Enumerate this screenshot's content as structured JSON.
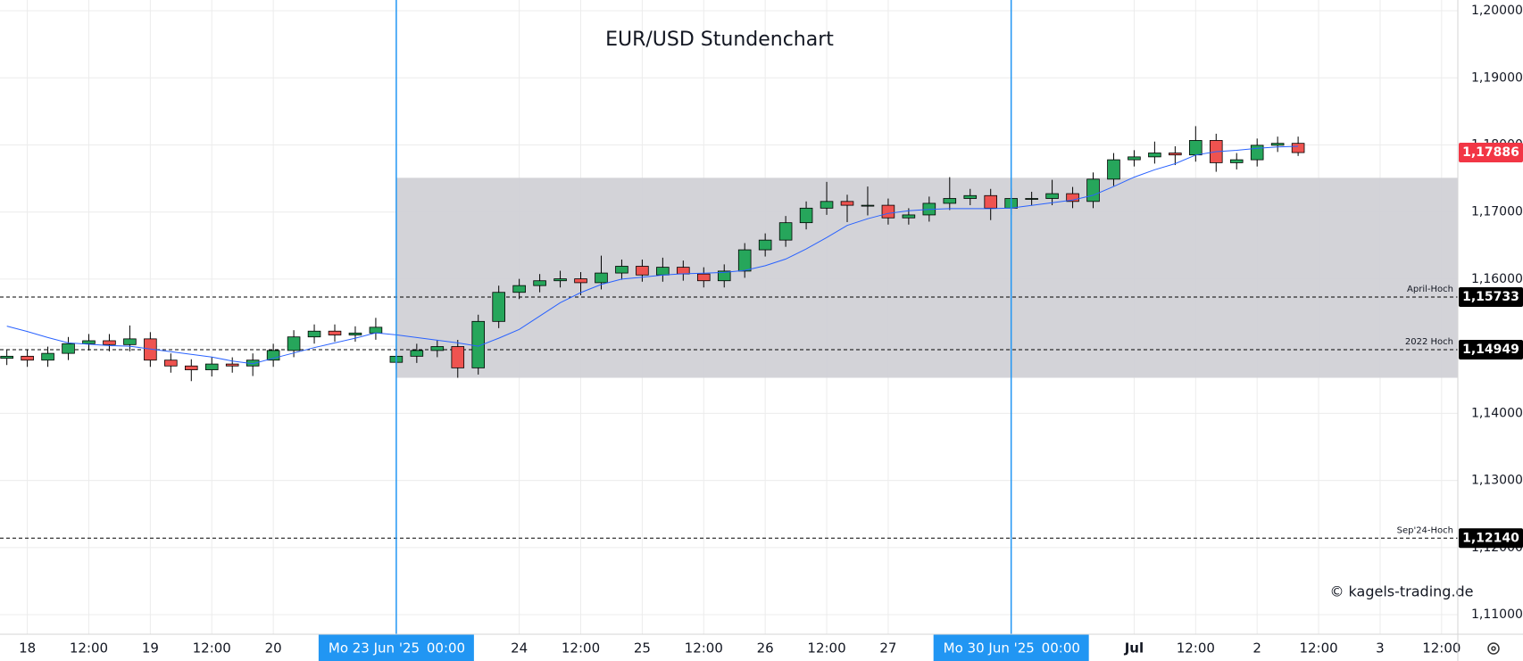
{
  "chart_data": {
    "type": "candlestick",
    "title": "EUR/USD Stundenchart",
    "watermark": "© kagels-trading.de",
    "grid": true,
    "up_color": "#26a65b",
    "down_color": "#ef5350",
    "x": [
      "2025-06-17 20:00",
      "2025-06-18 00:00",
      "2025-06-18 04:00",
      "2025-06-18 08:00",
      "2025-06-18 12:00",
      "2025-06-18 16:00",
      "2025-06-18 20:00",
      "2025-06-19 00:00",
      "2025-06-19 04:00",
      "2025-06-19 08:00",
      "2025-06-19 12:00",
      "2025-06-19 16:00",
      "2025-06-19 20:00",
      "2025-06-20 00:00",
      "2025-06-20 04:00",
      "2025-06-20 08:00",
      "2025-06-20 12:00",
      "2025-06-20 16:00",
      "2025-06-20 20:00",
      "2025-06-23 00:00",
      "2025-06-23 04:00",
      "2025-06-23 08:00",
      "2025-06-23 12:00",
      "2025-06-23 16:00",
      "2025-06-23 20:00",
      "2025-06-24 00:00",
      "2025-06-24 04:00",
      "2025-06-24 08:00",
      "2025-06-24 12:00",
      "2025-06-24 16:00",
      "2025-06-24 20:00",
      "2025-06-25 00:00",
      "2025-06-25 04:00",
      "2025-06-25 08:00",
      "2025-06-25 12:00",
      "2025-06-25 16:00",
      "2025-06-25 20:00",
      "2025-06-26 00:00",
      "2025-06-26 04:00",
      "2025-06-26 08:00",
      "2025-06-26 12:00",
      "2025-06-26 16:00",
      "2025-06-26 20:00",
      "2025-06-27 00:00",
      "2025-06-27 04:00",
      "2025-06-27 08:00",
      "2025-06-27 12:00",
      "2025-06-27 16:00",
      "2025-06-27 20:00",
      "2025-06-30 00:00",
      "2025-06-30 04:00",
      "2025-06-30 08:00",
      "2025-06-30 12:00",
      "2025-06-30 16:00",
      "2025-06-30 20:00",
      "2025-07-01 00:00",
      "2025-07-01 04:00",
      "2025-07-01 08:00",
      "2025-07-01 12:00",
      "2025-07-01 16:00",
      "2025-07-01 20:00",
      "2025-07-02 00:00",
      "2025-07-02 04:00",
      "2025-07-02 08:00"
    ],
    "open": [
      1.1482,
      1.14851,
      1.14793,
      1.14894,
      1.15038,
      1.15082,
      1.15024,
      1.1511,
      1.14793,
      1.14706,
      1.14649,
      1.14735,
      1.14706,
      1.14793,
      1.14937,
      1.15139,
      1.15225,
      1.15168,
      1.15197,
      1.1476,
      1.14851,
      1.14937,
      1.14995,
      1.14678,
      1.1537,
      1.15803,
      1.15904,
      1.15976,
      1.16005,
      1.15947,
      1.16091,
      1.16192,
      1.16062,
      1.16177,
      1.16077,
      1.15976,
      1.1612,
      1.16437,
      1.16582,
      1.16841,
      1.17058,
      1.17158,
      1.17101,
      1.17101,
      1.16913,
      1.16957,
      1.1713,
      1.17202,
      1.17245,
      1.17058,
      1.17202,
      1.17202,
      1.17274,
      1.17158,
      1.1749,
      1.17779,
      1.17822,
      1.1788,
      1.17851,
      1.18067,
      1.17735,
      1.17779,
      1.17995,
      1.18024
    ],
    "high": [
      1.14951,
      1.14951,
      1.14994,
      1.15138,
      1.15182,
      1.15182,
      1.1531,
      1.1521,
      1.14893,
      1.14806,
      1.14835,
      1.14835,
      1.14893,
      1.15037,
      1.15239,
      1.15325,
      1.15325,
      1.15297,
      1.15423,
      1.14951,
      1.15037,
      1.15095,
      1.15095,
      1.1547,
      1.15903,
      1.16004,
      1.16076,
      1.16125,
      1.16105,
      1.1635,
      1.16292,
      1.16292,
      1.1632,
      1.16277,
      1.16177,
      1.1622,
      1.16537,
      1.16682,
      1.16941,
      1.17158,
      1.1745,
      1.17258,
      1.1738,
      1.17201,
      1.17057,
      1.1723,
      1.1752,
      1.17345,
      1.17345,
      1.1735,
      1.17302,
      1.1748,
      1.17374,
      1.1759,
      1.17879,
      1.17922,
      1.1805,
      1.1798,
      1.1828,
      1.18167,
      1.17879,
      1.18095,
      1.18124,
      1.18124
    ],
    "low": [
      1.1472,
      1.14693,
      1.14693,
      1.14794,
      1.14938,
      1.14924,
      1.14924,
      1.14693,
      1.14606,
      1.1448,
      1.14549,
      1.14606,
      1.14556,
      1.14693,
      1.14837,
      1.15039,
      1.15068,
      1.15068,
      1.15097,
      1.1466,
      1.14751,
      1.14837,
      1.1453,
      1.14578,
      1.1527,
      1.15703,
      1.15804,
      1.15876,
      1.1576,
      1.15847,
      1.15991,
      1.15962,
      1.15962,
      1.15977,
      1.15876,
      1.15876,
      1.1602,
      1.16337,
      1.16482,
      1.16741,
      1.16958,
      1.1685,
      1.1695,
      1.16813,
      1.16813,
      1.16857,
      1.1703,
      1.17102,
      1.1688,
      1.16958,
      1.17102,
      1.17102,
      1.17058,
      1.17058,
      1.1739,
      1.17679,
      1.17722,
      1.177,
      1.17751,
      1.176,
      1.17635,
      1.17679,
      1.17895,
      1.17836
    ],
    "close": [
      1.14851,
      1.14793,
      1.14894,
      1.15038,
      1.15082,
      1.15024,
      1.1511,
      1.14793,
      1.14706,
      1.14649,
      1.14735,
      1.14706,
      1.14793,
      1.14937,
      1.15139,
      1.15225,
      1.15168,
      1.15197,
      1.15283,
      1.14851,
      1.14937,
      1.14995,
      1.14678,
      1.1537,
      1.15803,
      1.15904,
      1.15976,
      1.16005,
      1.15947,
      1.16091,
      1.16192,
      1.16062,
      1.16177,
      1.16077,
      1.15976,
      1.1612,
      1.16437,
      1.16582,
      1.16841,
      1.17058,
      1.17158,
      1.17101,
      1.17101,
      1.16913,
      1.16957,
      1.1713,
      1.17202,
      1.17245,
      1.17058,
      1.17202,
      1.17202,
      1.17274,
      1.17158,
      1.1749,
      1.17779,
      1.17822,
      1.1788,
      1.17851,
      1.18067,
      1.17735,
      1.17779,
      1.17995,
      1.18024,
      1.17886
    ],
    "ma": {
      "color": "#2962ff",
      "values": [
        1.153,
        1.1522,
        1.1513,
        1.1505,
        1.1503,
        1.1501,
        1.15,
        1.1496,
        1.1492,
        1.1488,
        1.1484,
        1.1478,
        1.1474,
        1.1482,
        1.149,
        1.1498,
        1.1505,
        1.1512,
        1.152,
        1.1517,
        1.1513,
        1.1509,
        1.1505,
        1.15,
        1.1512,
        1.1525,
        1.1545,
        1.1565,
        1.158,
        1.1592,
        1.16,
        1.1603,
        1.1606,
        1.1608,
        1.1609,
        1.161,
        1.1613,
        1.162,
        1.163,
        1.1645,
        1.1662,
        1.168,
        1.169,
        1.1698,
        1.1702,
        1.1704,
        1.1705,
        1.1705,
        1.1705,
        1.1706,
        1.171,
        1.1714,
        1.1718,
        1.1725,
        1.1738,
        1.1752,
        1.1763,
        1.1772,
        1.1785,
        1.179,
        1.1792,
        1.1795,
        1.1797,
        1.1798
      ]
    },
    "xlim": [
      "2025-06-17 18:40",
      "2025-07-03 15:10"
    ],
    "ylim": [
      1.10708,
      1.2016
    ],
    "xticks": [
      {
        "value": "2025-06-18 00:00",
        "label": "18"
      },
      {
        "value": "2025-06-18 12:00",
        "label": "12:00"
      },
      {
        "value": "2025-06-19 00:00",
        "label": "19"
      },
      {
        "value": "2025-06-19 12:00",
        "label": "12:00"
      },
      {
        "value": "2025-06-20 00:00",
        "label": "20"
      },
      {
        "value": "2025-06-24 00:00",
        "label": "24"
      },
      {
        "value": "2025-06-24 12:00",
        "label": "12:00"
      },
      {
        "value": "2025-06-25 00:00",
        "label": "25"
      },
      {
        "value": "2025-06-25 12:00",
        "label": "12:00"
      },
      {
        "value": "2025-06-26 00:00",
        "label": "26"
      },
      {
        "value": "2025-06-26 12:00",
        "label": "12:00"
      },
      {
        "value": "2025-06-27 00:00",
        "label": "27"
      },
      {
        "value": "2025-07-01 00:00",
        "label": "Jul"
      },
      {
        "value": "2025-07-01 12:00",
        "label": "12:00"
      },
      {
        "value": "2025-07-02 00:00",
        "label": "2"
      },
      {
        "value": "2025-07-02 12:00",
        "label": "12:00"
      },
      {
        "value": "2025-07-03 00:00",
        "label": "3"
      },
      {
        "value": "2025-07-03 12:00",
        "label": "12:00"
      }
    ],
    "yticks": [
      {
        "value": 1.11,
        "label": "1,11000"
      },
      {
        "value": 1.12,
        "label": "1,12000"
      },
      {
        "value": 1.13,
        "label": "1,13000"
      },
      {
        "value": 1.14,
        "label": "1,14000"
      },
      {
        "value": 1.15,
        "label": "1,15000"
      },
      {
        "value": 1.16,
        "label": "1,16000"
      },
      {
        "value": 1.17,
        "label": "1,17000"
      },
      {
        "value": 1.18,
        "label": "1,18000"
      },
      {
        "value": 1.19,
        "label": "1,19000"
      },
      {
        "value": 1.2,
        "label": "1,20000"
      }
    ],
    "zone": {
      "from": "2025-06-23 00:00",
      "low": 1.1453,
      "high": 1.1751,
      "color": "#d1d1d6"
    },
    "levels": [
      {
        "name": "April-Hoch",
        "value": 1.15733,
        "label": "1,15733"
      },
      {
        "name": "2022 Hoch",
        "value": 1.14949,
        "label": "1,14949"
      },
      {
        "name": "Sep'24-Hoch",
        "value": 1.1214,
        "label": "1,12140"
      }
    ],
    "last_price": {
      "value": 1.17886,
      "label": "1,17886",
      "color": "#f23645"
    },
    "markers": {
      "color": "#2196f3",
      "items": [
        {
          "x": "2025-06-23 00:00",
          "date_label": "Mo 23 Jun '25",
          "time_label": "00:00"
        },
        {
          "x": "2025-06-30 00:00",
          "date_label": "Mo 30 Jun '25",
          "time_label": "00:00"
        }
      ]
    }
  }
}
